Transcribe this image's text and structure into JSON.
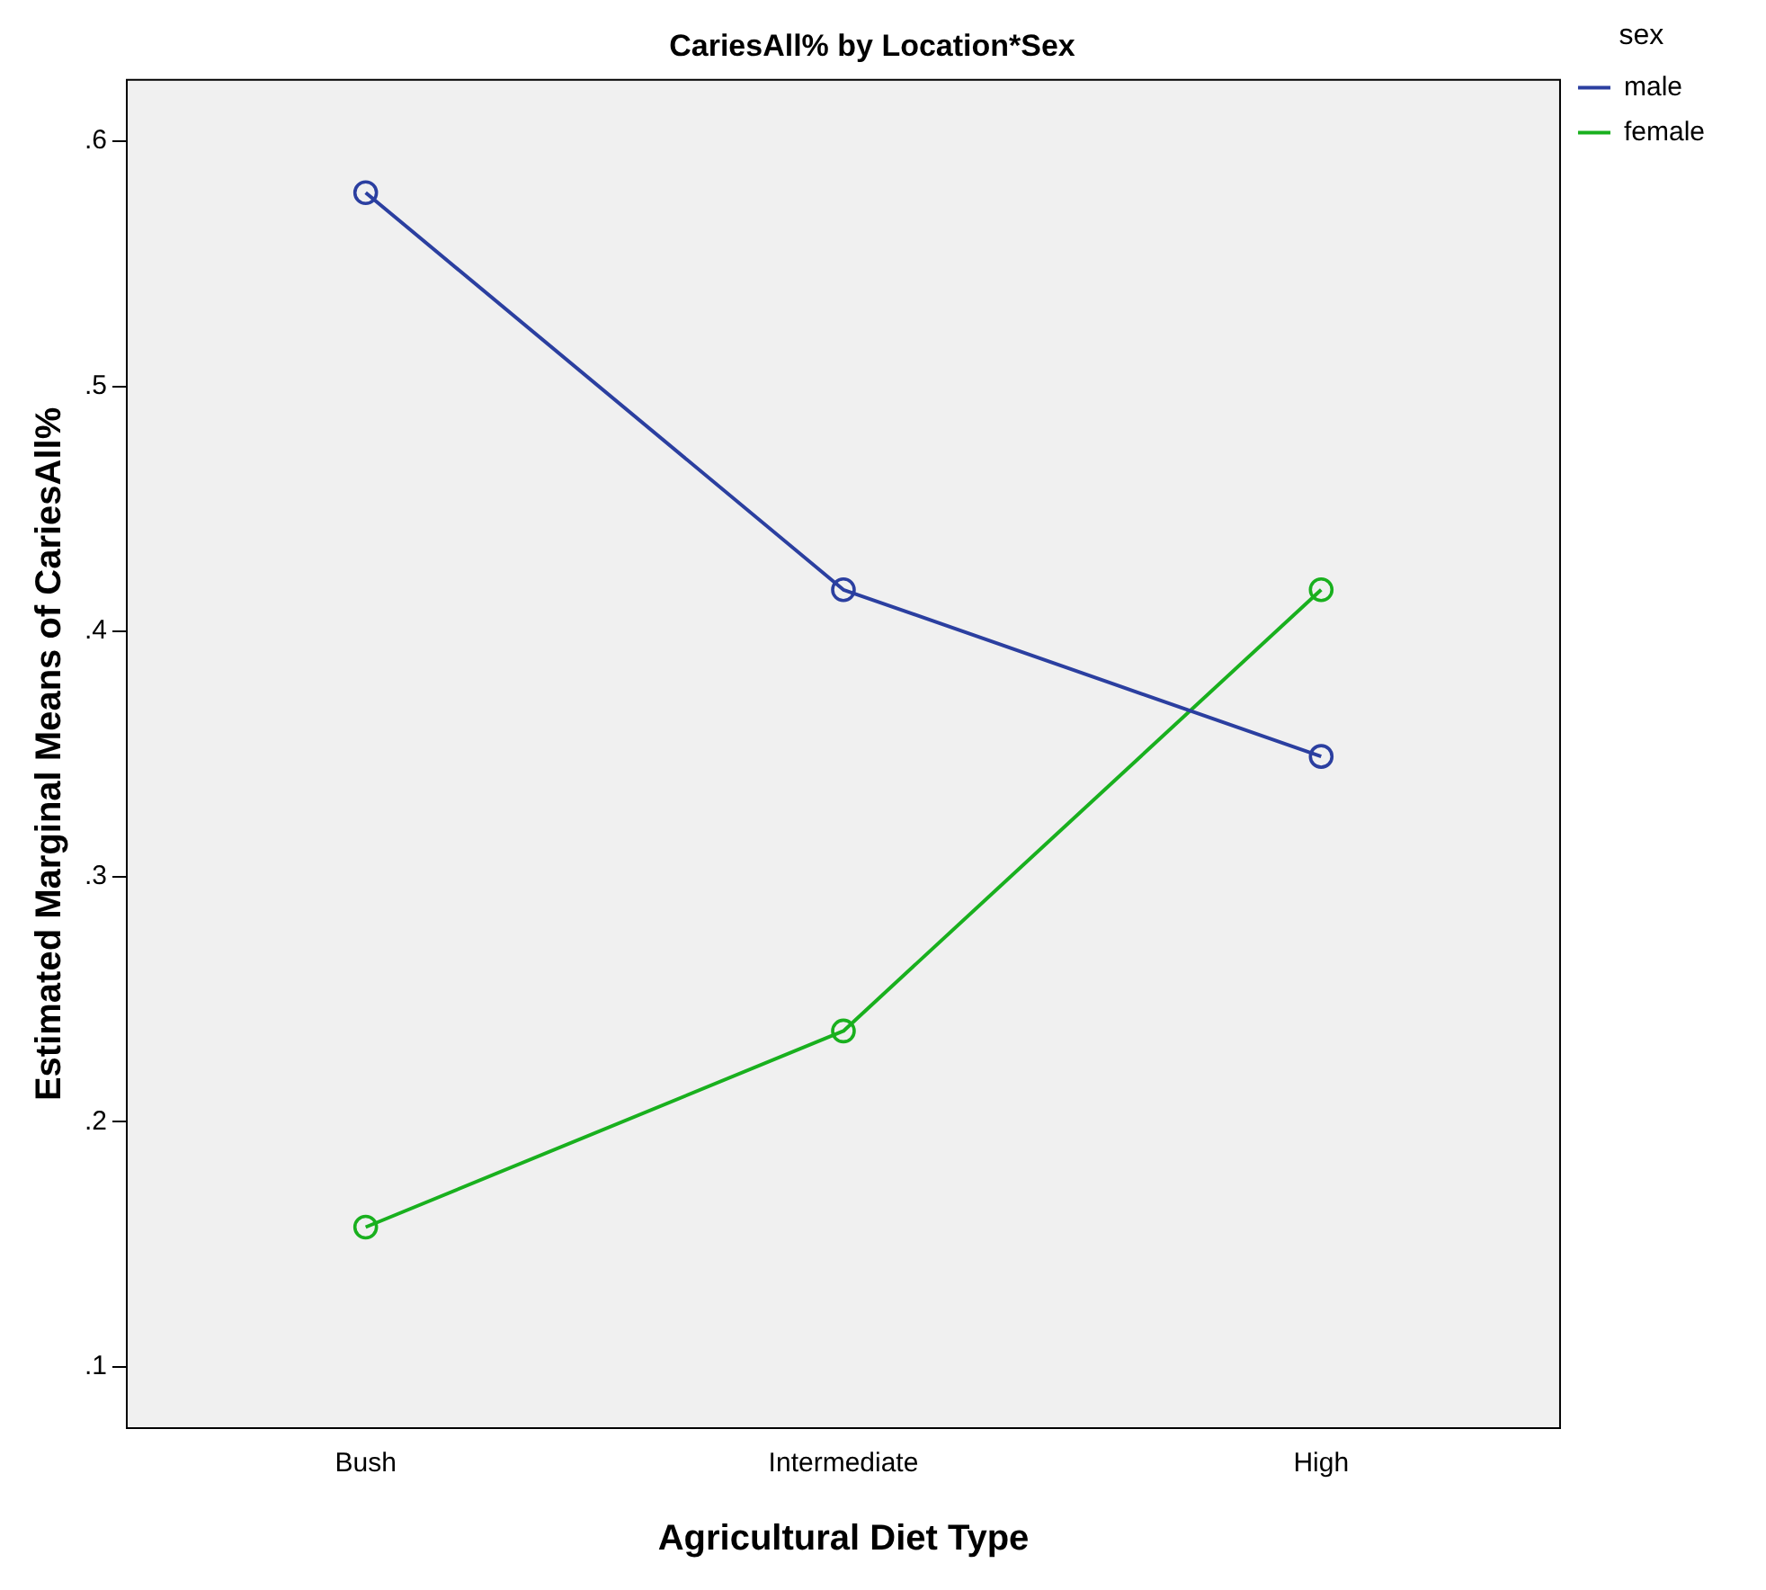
{
  "chart_data": {
    "type": "line",
    "title": "CariesAll% by Location*Sex",
    "xlabel": "Agricultural Diet Type",
    "ylabel": "Estimated Marginal Means of CariesAll%",
    "legend_title": "sex",
    "categories": [
      "Bush",
      "Intermediate",
      "High"
    ],
    "series": [
      {
        "name": "male",
        "color": "#2b3fa0",
        "values": [
          0.579,
          0.417,
          0.349
        ]
      },
      {
        "name": "female",
        "color": "#19b01e",
        "values": [
          0.157,
          0.237,
          0.417
        ]
      }
    ],
    "ylim": [
      0.075,
      0.625
    ],
    "yticks": [
      {
        "value": 0.1,
        "label": ".1"
      },
      {
        "value": 0.2,
        "label": ".2"
      },
      {
        "value": 0.3,
        "label": ".3"
      },
      {
        "value": 0.4,
        "label": ".4"
      },
      {
        "value": 0.5,
        "label": ".5"
      },
      {
        "value": 0.6,
        "label": ".6"
      }
    ],
    "grid": false,
    "legend": "right",
    "marker": "circle",
    "line_style": "solid"
  }
}
